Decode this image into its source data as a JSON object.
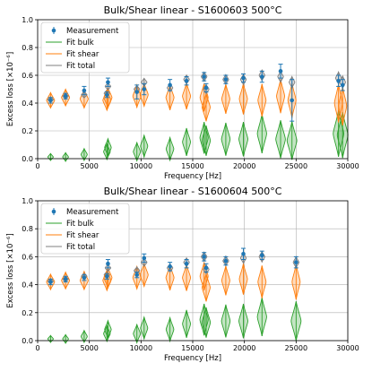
{
  "chart_data": [
    {
      "type": "violin",
      "title": "Bulk/Shear linear - S1600603 500°C",
      "xlabel": "Frequency [Hz]",
      "ylabel": "Excess loss [×10⁻⁶]",
      "xlim": [
        0,
        30000
      ],
      "ylim": [
        0,
        1.0
      ],
      "xticks": [
        0,
        5000,
        10000,
        15000,
        20000,
        25000,
        30000
      ],
      "yticks": [
        0.0,
        0.2,
        0.4,
        0.6,
        0.8,
        1.0
      ],
      "xtick_labels": [
        "0",
        "5000",
        "10000",
        "15000",
        "20000",
        "25000",
        "30000"
      ],
      "ytick_labels": [
        "0.0",
        "0.2",
        "0.4",
        "0.6",
        "0.8",
        "1.0"
      ],
      "grid": true,
      "legend": {
        "placement": "top-left",
        "entries": [
          "Measurement",
          "Fit bulk",
          "Fit shear",
          "Fit total"
        ]
      },
      "colors": {
        "measurement": "#1f77b4",
        "bulk": "#2ca02c",
        "shear": "#ff7f0e",
        "total": "#7f7f7f"
      },
      "points": [
        {
          "x": 1250,
          "m": 0.42,
          "err": 0.02,
          "shear": 0.42,
          "bulk": 0.005,
          "total": 0.425
        },
        {
          "x": 2700,
          "m": 0.45,
          "err": 0.02,
          "shear": 0.44,
          "bulk": 0.01,
          "total": 0.45
        },
        {
          "x": 4500,
          "m": 0.49,
          "err": 0.03,
          "shear": 0.43,
          "bulk": 0.03,
          "total": 0.46
        },
        {
          "x": 6700,
          "m": 0.46,
          "err": 0.02,
          "shear": 0.42,
          "bulk": 0.05,
          "total": 0.47
        },
        {
          "x": 6800,
          "m": 0.55,
          "err": 0.03,
          "shear": 0.44,
          "bulk": 0.08,
          "total": 0.52
        },
        {
          "x": 9600,
          "m": 0.48,
          "err": 0.05,
          "shear": 0.45,
          "bulk": 0.05,
          "total": 0.5
        },
        {
          "x": 10300,
          "m": 0.5,
          "err": 0.04,
          "shear": 0.46,
          "bulk": 0.09,
          "total": 0.55
        },
        {
          "x": 12800,
          "m": 0.53,
          "err": 0.04,
          "shear": 0.44,
          "bulk": 0.07,
          "total": 0.51
        },
        {
          "x": 14400,
          "m": 0.56,
          "err": 0.03,
          "shear": 0.45,
          "bulk": 0.12,
          "total": 0.57
        },
        {
          "x": 16100,
          "m": 0.59,
          "err": 0.03,
          "shear": 0.44,
          "bulk": 0.15,
          "total": 0.59
        },
        {
          "x": 16300,
          "m": 0.51,
          "err": 0.03,
          "shear": 0.37,
          "bulk": 0.13,
          "total": 0.5
        },
        {
          "x": 18200,
          "m": 0.57,
          "err": 0.03,
          "shear": 0.43,
          "bulk": 0.14,
          "total": 0.57
        },
        {
          "x": 19900,
          "m": 0.58,
          "err": 0.03,
          "shear": 0.43,
          "bulk": 0.14,
          "total": 0.57
        },
        {
          "x": 21700,
          "m": 0.59,
          "err": 0.04,
          "shear": 0.42,
          "bulk": 0.18,
          "total": 0.6
        },
        {
          "x": 23500,
          "m": 0.63,
          "err": 0.05,
          "shear": 0.45,
          "bulk": 0.14,
          "total": 0.59
        },
        {
          "x": 24600,
          "m": 0.42,
          "err": 0.15,
          "shear": 0.42,
          "bulk": 0.13,
          "total": 0.55
        },
        {
          "x": 29100,
          "m": 0.56,
          "err": 0.04,
          "shear": 0.4,
          "bulk": 0.18,
          "total": 0.58
        },
        {
          "x": 29500,
          "m": 0.53,
          "err": 0.04,
          "shear": 0.38,
          "bulk": 0.17,
          "total": 0.55
        }
      ]
    },
    {
      "type": "violin",
      "title": "Bulk/Shear linear - S1600604 500°C",
      "xlabel": "Frequency [Hz]",
      "ylabel": "Excess loss [×10⁻⁶]",
      "xlim": [
        0,
        30000
      ],
      "ylim": [
        0,
        1.0
      ],
      "xticks": [
        0,
        5000,
        10000,
        15000,
        20000,
        25000,
        30000
      ],
      "yticks": [
        0.0,
        0.2,
        0.4,
        0.6,
        0.8,
        1.0
      ],
      "xtick_labels": [
        "0",
        "5000",
        "10000",
        "15000",
        "20000",
        "25000",
        "30000"
      ],
      "ytick_labels": [
        "0.0",
        "0.2",
        "0.4",
        "0.6",
        "0.8",
        "1.0"
      ],
      "grid": true,
      "legend": {
        "placement": "top-left",
        "entries": [
          "Measurement",
          "Fit bulk",
          "Fit shear",
          "Fit total"
        ]
      },
      "colors": {
        "measurement": "#1f77b4",
        "bulk": "#2ca02c",
        "shear": "#ff7f0e",
        "total": "#7f7f7f"
      },
      "points": [
        {
          "x": 1250,
          "m": 0.42,
          "err": 0.02,
          "shear": 0.42,
          "bulk": 0.005,
          "total": 0.425
        },
        {
          "x": 2700,
          "m": 0.44,
          "err": 0.02,
          "shear": 0.43,
          "bulk": 0.01,
          "total": 0.44
        },
        {
          "x": 4500,
          "m": 0.45,
          "err": 0.02,
          "shear": 0.43,
          "bulk": 0.03,
          "total": 0.46
        },
        {
          "x": 6700,
          "m": 0.46,
          "err": 0.02,
          "shear": 0.43,
          "bulk": 0.05,
          "total": 0.47
        },
        {
          "x": 6800,
          "m": 0.55,
          "err": 0.03,
          "shear": 0.45,
          "bulk": 0.08,
          "total": 0.52
        },
        {
          "x": 9600,
          "m": 0.47,
          "err": 0.02,
          "shear": 0.45,
          "bulk": 0.05,
          "total": 0.5
        },
        {
          "x": 10300,
          "m": 0.59,
          "err": 0.03,
          "shear": 0.47,
          "bulk": 0.09,
          "total": 0.56
        },
        {
          "x": 12800,
          "m": 0.53,
          "err": 0.03,
          "shear": 0.45,
          "bulk": 0.08,
          "total": 0.52
        },
        {
          "x": 14400,
          "m": 0.55,
          "err": 0.03,
          "shear": 0.45,
          "bulk": 0.12,
          "total": 0.56
        },
        {
          "x": 16100,
          "m": 0.6,
          "err": 0.03,
          "shear": 0.46,
          "bulk": 0.15,
          "total": 0.6
        },
        {
          "x": 16300,
          "m": 0.52,
          "err": 0.03,
          "shear": 0.38,
          "bulk": 0.13,
          "total": 0.51
        },
        {
          "x": 18200,
          "m": 0.57,
          "err": 0.03,
          "shear": 0.43,
          "bulk": 0.14,
          "total": 0.57
        },
        {
          "x": 19900,
          "m": 0.62,
          "err": 0.04,
          "shear": 0.44,
          "bulk": 0.14,
          "total": 0.59
        },
        {
          "x": 21700,
          "m": 0.61,
          "err": 0.03,
          "shear": 0.42,
          "bulk": 0.17,
          "total": 0.6
        },
        {
          "x": 25000,
          "m": 0.56,
          "err": 0.04,
          "shear": 0.42,
          "bulk": 0.14,
          "total": 0.56
        }
      ]
    }
  ]
}
